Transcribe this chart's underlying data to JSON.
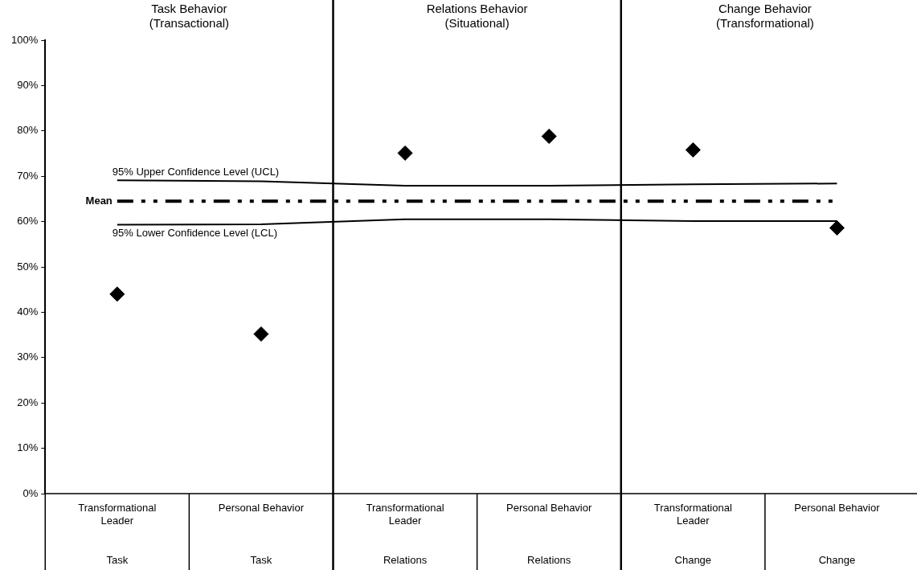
{
  "chart_data": {
    "type": "scatter",
    "categories": [
      "Transformational Leader",
      "Personal Behavior",
      "Transformational Leader",
      "Personal Behavior",
      "Transformational Leader",
      "Personal Behavior"
    ],
    "series": [
      {
        "color": "#000000",
        "marker": "diamond",
        "values": [
          44,
          35.2,
          75.1,
          78.8,
          75.8,
          58.6
        ]
      },
      {
        "type": "line",
        "name": "95% Upper Confidence Level (UCL)",
        "color": "#000000",
        "marker": "none",
        "line_style": "solid",
        "values": [
          69.1,
          68.9,
          67.9,
          67.9,
          68.2,
          68.4
        ]
      },
      {
        "type": "line",
        "name": "95% Lower Confidence Level (LCL)",
        "color": "#000000",
        "marker": "none",
        "line_style": "solid",
        "values": [
          59.3,
          59.4,
          60.5,
          60.5,
          60.1,
          60.1
        ]
      }
    ],
    "ref_lines": [
      {
        "axis": "y",
        "value": 64.5,
        "label": "Mean",
        "color": "#000000",
        "line_style": "dashed"
      }
    ],
    "annotations": [
      "Task Behavior\n(Transactional)",
      "Relations Behavior\n(Situational)",
      "Change Behavior\n(Transformational)",
      "Task",
      "Task",
      "Relations",
      "Relations",
      "Change",
      "Change"
    ],
    "ylim": [
      0,
      100
    ],
    "yticks": [
      {
        "value": 0,
        "label": "0%"
      },
      {
        "value": 10,
        "label": "10%"
      },
      {
        "value": 20,
        "label": "20%"
      },
      {
        "value": 30,
        "label": "30%"
      },
      {
        "value": 40,
        "label": "40%"
      },
      {
        "value": 50,
        "label": "50%"
      },
      {
        "value": 60,
        "label": "60%"
      },
      {
        "value": 70,
        "label": "70%"
      },
      {
        "value": 80,
        "label": "80%"
      },
      {
        "value": 90,
        "label": "90%"
      },
      {
        "value": 100,
        "label": "100%"
      }
    ],
    "grid": false,
    "legend": false
  }
}
